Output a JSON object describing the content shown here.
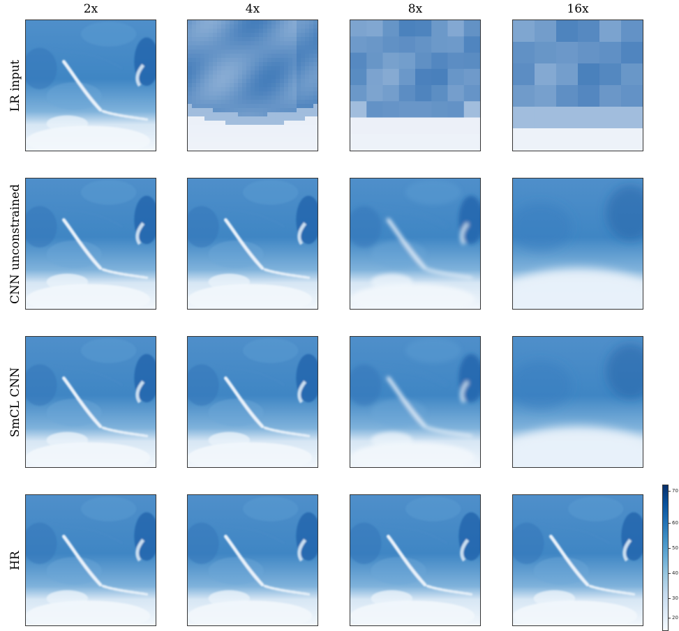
{
  "columns": [
    "2x",
    "4x",
    "8x",
    "16x"
  ],
  "rows": [
    "LR input",
    "CNN unconstrained",
    "SmCL CNN",
    "HR"
  ],
  "colorbar": {
    "ticks": [
      "70",
      "60",
      "50",
      "40",
      "30",
      "20"
    ],
    "colormap": "Blues"
  },
  "colors": {
    "dark": "#08306b",
    "mid": "#3f86c4",
    "light": "#f2f7fc"
  }
}
